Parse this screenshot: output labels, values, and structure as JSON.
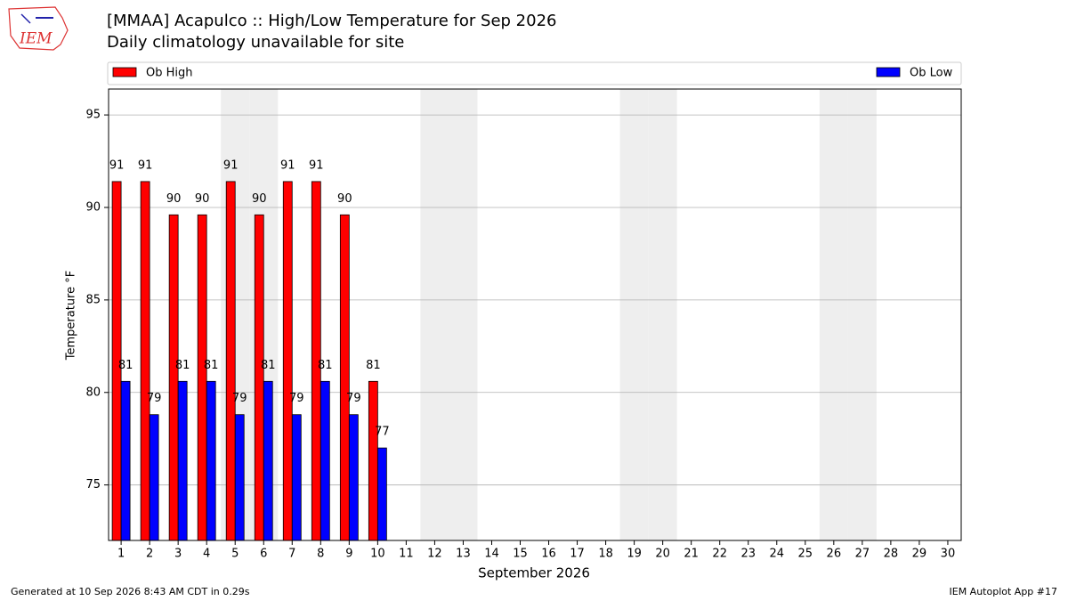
{
  "chart_data": {
    "type": "bar",
    "logo_text": "IEM",
    "title": "[MMAA] Acapulco :: High/Low Temperature for Sep 2026",
    "subtitle": "Daily climatology unavailable for site",
    "y_label": "Temperature °F",
    "x_label": "September 2026",
    "footer_left": "Generated at 10 Sep 2026 8:43 AM CDT in 0.29s",
    "footer_right": "IEM Autoplot App #17",
    "categories": [
      1,
      2,
      3,
      4,
      5,
      6,
      7,
      8,
      9,
      10,
      11,
      12,
      13,
      14,
      15,
      16,
      17,
      18,
      19,
      20,
      21,
      22,
      23,
      24,
      25,
      26,
      27,
      28,
      29,
      30
    ],
    "shaded_days": [
      5,
      6,
      12,
      13,
      19,
      20,
      26,
      27
    ],
    "series": [
      {
        "name": "Ob High",
        "color": "#ff0000",
        "values": [
          91.4,
          91.4,
          89.6,
          89.6,
          91.4,
          89.6,
          91.4,
          91.4,
          89.6,
          80.6,
          null,
          null,
          null,
          null,
          null,
          null,
          null,
          null,
          null,
          null,
          null,
          null,
          null,
          null,
          null,
          null,
          null,
          null,
          null,
          null
        ],
        "value_labels": [
          "91",
          "91",
          "90",
          "90",
          "91",
          "90",
          "91",
          "91",
          "90",
          "81",
          null,
          null,
          null,
          null,
          null,
          null,
          null,
          null,
          null,
          null,
          null,
          null,
          null,
          null,
          null,
          null,
          null,
          null,
          null,
          null
        ]
      },
      {
        "name": "Ob Low",
        "color": "#0000ff",
        "values": [
          80.6,
          78.8,
          80.6,
          80.6,
          78.8,
          80.6,
          78.8,
          80.6,
          78.8,
          77.0,
          null,
          null,
          null,
          null,
          null,
          null,
          null,
          null,
          null,
          null,
          null,
          null,
          null,
          null,
          null,
          null,
          null,
          null,
          null,
          null
        ],
        "value_labels": [
          "81",
          "79",
          "81",
          "81",
          "79",
          "81",
          "79",
          "81",
          "79",
          "77",
          null,
          null,
          null,
          null,
          null,
          null,
          null,
          null,
          null,
          null,
          null,
          null,
          null,
          null,
          null,
          null,
          null,
          null,
          null,
          null
        ]
      }
    ],
    "ylim": [
      72,
      96.4
    ],
    "yticks": [
      75,
      80,
      85,
      90,
      95
    ],
    "grid": true,
    "legend": "top"
  }
}
